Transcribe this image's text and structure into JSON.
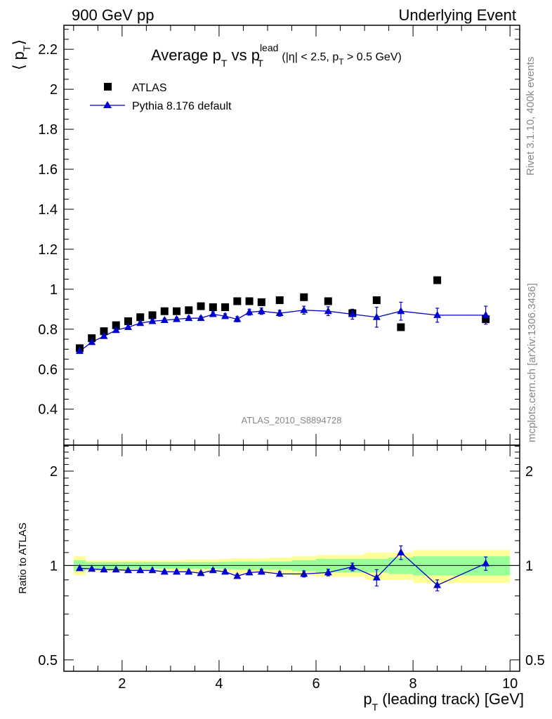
{
  "header": {
    "left": "900 GeV pp",
    "right": "Underlying Event"
  },
  "side_text": {
    "rivet": "Rivet 3.1.10,  400k events",
    "source": "mcplots.cern.ch [arXiv:1306.3436]"
  },
  "watermark": "ATLAS_2010_S8894728",
  "colors": {
    "mc": "#0000cc",
    "data": "#000000",
    "band_inner": "#99ff99",
    "band_outer": "#ffff99"
  },
  "chart_data": [
    {
      "type": "scatter",
      "panel": "main",
      "title": {
        "a": "Average p",
        "a_sub": "T",
        "b": " vs p",
        "b_sup": "lead",
        "b_sub": "T",
        "c": " (|η| < 2.5, p",
        "c_sub": "T",
        "d": " > 0.5 GeV)"
      },
      "ylabel": {
        "main": "⟨ p",
        "sub": "T",
        "close": "⟩"
      },
      "xlim": [
        0.8,
        10.2
      ],
      "ylim": [
        0.22,
        2.32
      ],
      "y_ticks": [
        0.4,
        0.6,
        0.8,
        1,
        1.2,
        1.4,
        1.6,
        1.8,
        2,
        2.2
      ],
      "y_tick_labels": [
        "0.4",
        "0.6",
        "0.8",
        "1",
        "1.2",
        "1.4",
        "1.6",
        "1.8",
        "2",
        "2.2"
      ],
      "legend": {
        "position": "top-left",
        "entries": [
          "ATLAS",
          "Pythia 8.176 default"
        ]
      },
      "series": [
        {
          "name": "ATLAS",
          "marker": "square",
          "x": [
            1.125,
            1.375,
            1.625,
            1.875,
            2.125,
            2.375,
            2.625,
            2.875,
            3.125,
            3.375,
            3.625,
            3.875,
            4.125,
            4.375,
            4.625,
            4.875,
            5.25,
            5.75,
            6.25,
            6.75,
            7.25,
            7.75,
            8.5,
            9.5
          ],
          "y": [
            0.705,
            0.755,
            0.79,
            0.82,
            0.84,
            0.86,
            0.87,
            0.89,
            0.89,
            0.895,
            0.915,
            0.91,
            0.91,
            0.94,
            0.94,
            0.935,
            0.945,
            0.96,
            0.94,
            0.88,
            0.945,
            0.81,
            1.045,
            0.85
          ]
        },
        {
          "name": "Pythia 8.176 default",
          "marker": "triangle",
          "x": [
            1.125,
            1.375,
            1.625,
            1.875,
            2.125,
            2.375,
            2.625,
            2.875,
            3.125,
            3.375,
            3.625,
            3.875,
            4.125,
            4.375,
            4.625,
            4.875,
            5.25,
            5.75,
            6.25,
            6.75,
            7.25,
            7.75,
            8.5,
            9.5
          ],
          "y": [
            0.69,
            0.735,
            0.765,
            0.795,
            0.81,
            0.83,
            0.84,
            0.845,
            0.85,
            0.855,
            0.855,
            0.875,
            0.865,
            0.85,
            0.885,
            0.89,
            0.88,
            0.895,
            0.89,
            0.875,
            0.86,
            0.89,
            0.87,
            0.87
          ],
          "yerr": [
            0.006,
            0.006,
            0.006,
            0.007,
            0.007,
            0.008,
            0.008,
            0.009,
            0.009,
            0.01,
            0.01,
            0.012,
            0.012,
            0.013,
            0.015,
            0.016,
            0.015,
            0.02,
            0.022,
            0.025,
            0.05,
            0.045,
            0.035,
            0.045
          ]
        }
      ]
    },
    {
      "type": "scatter",
      "panel": "ratio",
      "ylabel": "Ratio to ATLAS",
      "xlabel": {
        "a": "p",
        "sub": "T",
        "b": " (leading track) [GeV]"
      },
      "xlim": [
        0.8,
        10.2
      ],
      "ylim": [
        0.46,
        2.42
      ],
      "y_scale": "log",
      "y_ticks": [
        0.5,
        1,
        2
      ],
      "y_tick_labels": [
        "0.5",
        "1",
        "2"
      ],
      "x_ticks": [
        2,
        4,
        6,
        8,
        10
      ],
      "x_tick_labels": [
        "2",
        "4",
        "6",
        "8",
        "10"
      ],
      "bands": {
        "edges": [
          1,
          1.25,
          1.5,
          1.75,
          2,
          2.25,
          2.5,
          2.75,
          3,
          3.25,
          3.5,
          3.75,
          4,
          4.25,
          4.5,
          4.75,
          5,
          5.5,
          6,
          6.5,
          7,
          7.5,
          8,
          9,
          10
        ],
        "inner": [
          0.04,
          0.025,
          0.025,
          0.025,
          0.025,
          0.025,
          0.025,
          0.025,
          0.025,
          0.025,
          0.025,
          0.025,
          0.027,
          0.03,
          0.03,
          0.03,
          0.03,
          0.04,
          0.05,
          0.05,
          0.05,
          0.06,
          0.07,
          0.07
        ],
        "outer": [
          0.07,
          0.04,
          0.04,
          0.04,
          0.04,
          0.04,
          0.04,
          0.04,
          0.04,
          0.045,
          0.045,
          0.045,
          0.05,
          0.055,
          0.055,
          0.055,
          0.06,
          0.07,
          0.08,
          0.08,
          0.1,
          0.1,
          0.12,
          0.12
        ]
      },
      "series": [
        {
          "name": "Pythia 8.176 default",
          "x": [
            1.125,
            1.375,
            1.625,
            1.875,
            2.125,
            2.375,
            2.625,
            2.875,
            3.125,
            3.375,
            3.625,
            3.875,
            4.125,
            4.375,
            4.625,
            4.875,
            5.25,
            5.75,
            6.25,
            6.75,
            7.25,
            7.75,
            8.5,
            9.5
          ],
          "y": [
            0.98,
            0.975,
            0.97,
            0.97,
            0.965,
            0.965,
            0.965,
            0.955,
            0.955,
            0.955,
            0.945,
            0.965,
            0.955,
            0.925,
            0.95,
            0.955,
            0.94,
            0.94,
            0.95,
            0.99,
            0.915,
            1.1,
            0.865,
            1.015
          ],
          "yerr": [
            0.008,
            0.008,
            0.008,
            0.008,
            0.008,
            0.009,
            0.009,
            0.01,
            0.01,
            0.011,
            0.011,
            0.013,
            0.013,
            0.014,
            0.016,
            0.017,
            0.016,
            0.021,
            0.023,
            0.028,
            0.055,
            0.055,
            0.035,
            0.05
          ]
        }
      ]
    }
  ]
}
